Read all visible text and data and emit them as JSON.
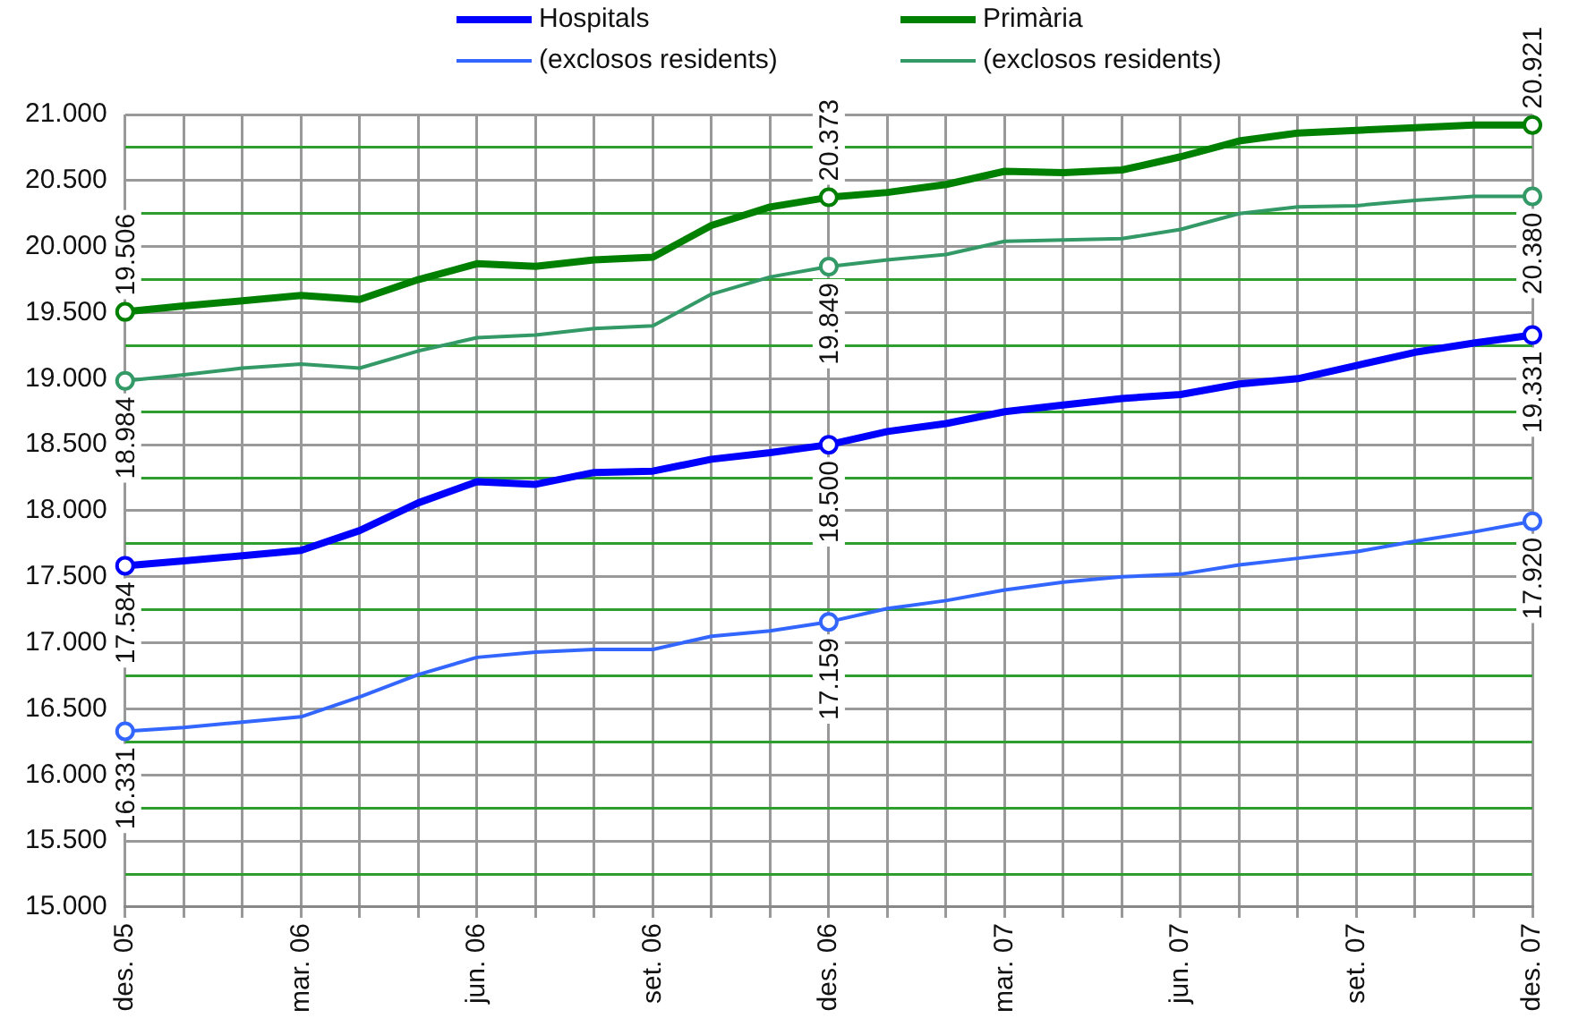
{
  "chart_data": {
    "type": "line",
    "categories": [
      "des. 05",
      null,
      null,
      "mar. 06",
      null,
      null,
      "jun. 06",
      null,
      null,
      "set. 06",
      null,
      null,
      "des. 06",
      null,
      null,
      "mar. 07",
      null,
      null,
      "jun. 07",
      null,
      null,
      "set. 07",
      null,
      null,
      "des. 07"
    ],
    "series": [
      {
        "name": "Hospitals",
        "color": "#0000ff",
        "values": [
          17584,
          17620,
          17660,
          17700,
          17850,
          18060,
          18220,
          18200,
          18290,
          18300,
          18390,
          18440,
          18500,
          18600,
          18660,
          18750,
          18800,
          18850,
          18880,
          18960,
          19000,
          19100,
          19200,
          19270,
          19331
        ],
        "value_labels": [
          "17.584",
          null,
          null,
          null,
          null,
          null,
          null,
          null,
          null,
          null,
          null,
          null,
          "18.500",
          null,
          null,
          null,
          null,
          null,
          null,
          null,
          null,
          null,
          null,
          null,
          "19.331"
        ]
      },
      {
        "name": "Primària",
        "color": "#008000",
        "values": [
          19506,
          19550,
          19590,
          19630,
          19600,
          19750,
          19870,
          19850,
          19900,
          19920,
          20160,
          20300,
          20373,
          20410,
          20470,
          20570,
          20560,
          20580,
          20680,
          20800,
          20860,
          20880,
          20900,
          20920,
          20921
        ],
        "value_labels": [
          "19.506",
          null,
          null,
          null,
          null,
          null,
          null,
          null,
          null,
          null,
          null,
          null,
          "20.373",
          null,
          null,
          null,
          null,
          null,
          null,
          null,
          null,
          null,
          null,
          null,
          "20.921"
        ]
      },
      {
        "name": "(exclosos residents)",
        "color": "#3366ff",
        "values": [
          16331,
          16360,
          16400,
          16440,
          16590,
          16760,
          16890,
          16930,
          16950,
          16950,
          17050,
          17090,
          17159,
          17260,
          17320,
          17400,
          17460,
          17500,
          17520,
          17590,
          17640,
          17690,
          17770,
          17840,
          17920
        ],
        "value_labels": [
          "16.331",
          null,
          null,
          null,
          null,
          null,
          null,
          null,
          null,
          null,
          null,
          null,
          "17.159",
          null,
          null,
          null,
          null,
          null,
          null,
          null,
          null,
          null,
          null,
          null,
          "17.920"
        ]
      },
      {
        "name": "(exclosos residents)",
        "color": "#339966",
        "values": [
          18984,
          19030,
          19080,
          19110,
          19080,
          19210,
          19310,
          19330,
          19380,
          19400,
          19640,
          19770,
          19849,
          19900,
          19940,
          20040,
          20050,
          20060,
          20130,
          20250,
          20300,
          20310,
          20350,
          20380,
          20380
        ],
        "value_labels": [
          "18.984",
          null,
          null,
          null,
          null,
          null,
          null,
          null,
          null,
          null,
          null,
          null,
          "19.849",
          null,
          null,
          null,
          null,
          null,
          null,
          null,
          null,
          null,
          null,
          null,
          "20.380"
        ]
      }
    ],
    "ylim": [
      15000,
      21000
    ],
    "yticks": [
      {
        "value": 15000,
        "label": "15.000"
      },
      {
        "value": 15250,
        "label": null
      },
      {
        "value": 15500,
        "label": "15.500"
      },
      {
        "value": 15750,
        "label": null
      },
      {
        "value": 16000,
        "label": "16.000"
      },
      {
        "value": 16250,
        "label": null
      },
      {
        "value": 16500,
        "label": "16.500"
      },
      {
        "value": 16750,
        "label": null
      },
      {
        "value": 17000,
        "label": "17.000"
      },
      {
        "value": 17250,
        "label": null
      },
      {
        "value": 17500,
        "label": "17.500"
      },
      {
        "value": 17750,
        "label": null
      },
      {
        "value": 18000,
        "label": "18.000"
      },
      {
        "value": 18250,
        "label": null
      },
      {
        "value": 18500,
        "label": "18.500"
      },
      {
        "value": 18750,
        "label": null
      },
      {
        "value": 19000,
        "label": "19.000"
      },
      {
        "value": 19250,
        "label": null
      },
      {
        "value": 19500,
        "label": "19.500"
      },
      {
        "value": 19750,
        "label": null
      },
      {
        "value": 20000,
        "label": "20.000"
      },
      {
        "value": 20250,
        "label": null
      },
      {
        "value": 20500,
        "label": "20.500"
      },
      {
        "value": 20750,
        "label": null
      },
      {
        "value": 21000,
        "label": "21.000"
      }
    ],
    "grid": true,
    "legend": "top",
    "line_style": "solid"
  }
}
